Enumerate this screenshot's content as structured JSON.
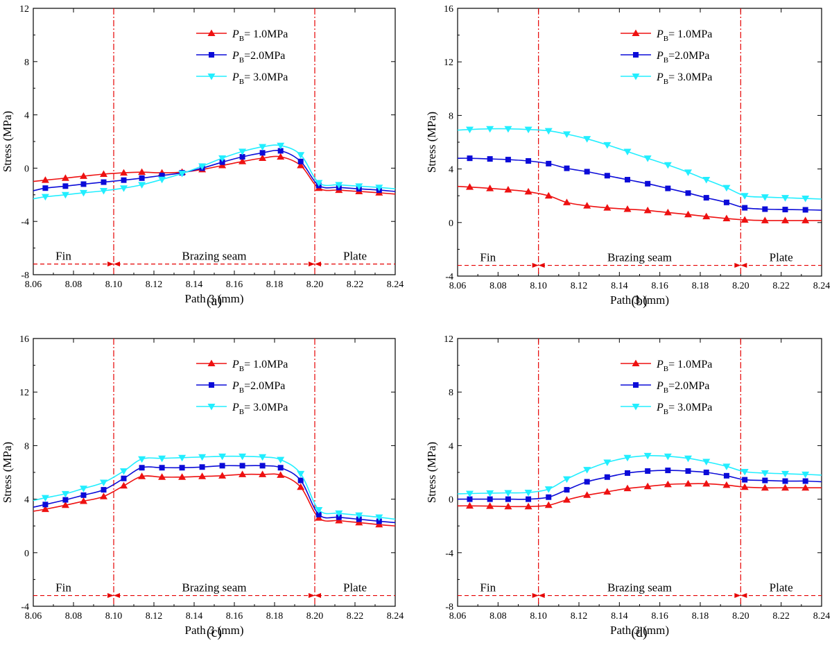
{
  "figure": {
    "panel_labels": [
      "(a)",
      "(b)",
      "(c)",
      "(d)"
    ]
  },
  "colors": {
    "series": [
      "#ee1111",
      "#0b0bd8",
      "#22eeff"
    ],
    "divider": "#e60000",
    "axis": "#000000"
  },
  "chart_data": [
    {
      "type": "line",
      "panel": "(a)",
      "xlabel": "Path 3 (mm)",
      "ylabel": "Stress (MPa)",
      "xlim": [
        8.06,
        8.24
      ],
      "ylim": [
        -8,
        12
      ],
      "xticks": [
        "8.06",
        "8.08",
        "8.10",
        "8.12",
        "8.14",
        "8.16",
        "8.18",
        "8.20",
        "8.22",
        "8.24"
      ],
      "yticks": [
        -8,
        -4,
        0,
        4,
        8,
        12
      ],
      "regions": [
        {
          "label": "Fin",
          "x": 8.075
        },
        {
          "label": "Brazing seam",
          "x": 8.15
        },
        {
          "label": "Plate",
          "x": 8.22
        }
      ],
      "dividers": [
        8.1,
        8.2
      ],
      "arrow_y": -7.2,
      "x": [
        8.06,
        8.066,
        8.076,
        8.085,
        8.095,
        8.105,
        8.114,
        8.124,
        8.134,
        8.144,
        8.154,
        8.164,
        8.174,
        8.183,
        8.193,
        8.202,
        8.212,
        8.222,
        8.232,
        8.24
      ],
      "series": [
        {
          "name": "PB=1.0MPa",
          "prefix": "P",
          "sub": "B",
          "suffix": "= 1.0MPa",
          "marker": "triangle-up",
          "values": [
            -1.0,
            -0.9,
            -0.75,
            -0.6,
            -0.45,
            -0.35,
            -0.3,
            -0.35,
            -0.3,
            -0.1,
            0.2,
            0.5,
            0.75,
            0.85,
            0.2,
            -1.5,
            -1.65,
            -1.75,
            -1.85,
            -1.95
          ]
        },
        {
          "name": "PB=2.0MPa",
          "prefix": "P",
          "sub": "B",
          "suffix": "=2.0MPa",
          "marker": "square",
          "values": [
            -1.7,
            -1.5,
            -1.35,
            -1.2,
            -1.05,
            -0.9,
            -0.75,
            -0.55,
            -0.35,
            0.0,
            0.45,
            0.85,
            1.15,
            1.3,
            0.5,
            -1.3,
            -1.45,
            -1.55,
            -1.65,
            -1.75
          ]
        },
        {
          "name": "PB=3.0MPa",
          "prefix": "P",
          "sub": "B",
          "suffix": "= 3.0MPa",
          "marker": "triangle-down",
          "values": [
            -2.3,
            -2.15,
            -2.0,
            -1.85,
            -1.7,
            -1.5,
            -1.25,
            -0.85,
            -0.4,
            0.15,
            0.75,
            1.25,
            1.6,
            1.7,
            1.0,
            -1.1,
            -1.25,
            -1.35,
            -1.45,
            -1.55
          ]
        }
      ]
    },
    {
      "type": "line",
      "panel": "(b)",
      "xlabel": "Path 3 (mm)",
      "ylabel": "Stress (MPa)",
      "xlim": [
        8.06,
        8.24
      ],
      "ylim": [
        -4,
        16
      ],
      "xticks": [
        "8.06",
        "8.08",
        "8.10",
        "8.12",
        "8.14",
        "8.16",
        "8.18",
        "8.20",
        "8.22",
        "8.24"
      ],
      "yticks": [
        -4,
        0,
        4,
        8,
        12,
        16
      ],
      "regions": [
        {
          "label": "Fin",
          "x": 8.075
        },
        {
          "label": "Brazing seam",
          "x": 8.15
        },
        {
          "label": "Plate",
          "x": 8.22
        }
      ],
      "dividers": [
        8.1,
        8.2
      ],
      "arrow_y": -3.2,
      "x": [
        8.06,
        8.066,
        8.076,
        8.085,
        8.095,
        8.105,
        8.114,
        8.124,
        8.134,
        8.144,
        8.154,
        8.164,
        8.174,
        8.183,
        8.193,
        8.202,
        8.212,
        8.222,
        8.232,
        8.24
      ],
      "series": [
        {
          "name": "PB=1.0MPa",
          "prefix": "P",
          "sub": "B",
          "suffix": "= 1.0MPa",
          "marker": "triangle-up",
          "values": [
            2.7,
            2.65,
            2.55,
            2.45,
            2.3,
            2.0,
            1.5,
            1.25,
            1.1,
            1.0,
            0.9,
            0.75,
            0.6,
            0.45,
            0.3,
            0.2,
            0.15,
            0.15,
            0.15,
            0.15
          ]
        },
        {
          "name": "PB=2.0MPa",
          "prefix": "P",
          "sub": "B",
          "suffix": "=2.0MPa",
          "marker": "square",
          "values": [
            4.8,
            4.8,
            4.75,
            4.7,
            4.6,
            4.4,
            4.05,
            3.8,
            3.5,
            3.2,
            2.9,
            2.55,
            2.2,
            1.85,
            1.5,
            1.1,
            1.0,
            0.97,
            0.95,
            0.92
          ]
        },
        {
          "name": "PB=3.0MPa",
          "prefix": "P",
          "sub": "B",
          "suffix": "= 3.0MPa",
          "marker": "triangle-down",
          "values": [
            6.9,
            6.95,
            7.0,
            7.0,
            6.95,
            6.85,
            6.6,
            6.25,
            5.8,
            5.3,
            4.8,
            4.3,
            3.75,
            3.2,
            2.6,
            2.0,
            1.9,
            1.85,
            1.8,
            1.75
          ]
        }
      ]
    },
    {
      "type": "line",
      "panel": "(c)",
      "xlabel": "Path 3 (mm)",
      "ylabel": "Stress (MPa)",
      "xlim": [
        8.06,
        8.24
      ],
      "ylim": [
        -4,
        16
      ],
      "xticks": [
        "8.06",
        "8.08",
        "8.10",
        "8.12",
        "8.14",
        "8.16",
        "8.18",
        "8.20",
        "8.22",
        "8.24"
      ],
      "yticks": [
        -4,
        0,
        4,
        8,
        12,
        16
      ],
      "regions": [
        {
          "label": "Fin",
          "x": 8.075
        },
        {
          "label": "Brazing seam",
          "x": 8.15
        },
        {
          "label": "Plate",
          "x": 8.22
        }
      ],
      "dividers": [
        8.1,
        8.2
      ],
      "arrow_y": -3.2,
      "x": [
        8.06,
        8.066,
        8.076,
        8.085,
        8.095,
        8.105,
        8.114,
        8.124,
        8.134,
        8.144,
        8.154,
        8.164,
        8.174,
        8.183,
        8.193,
        8.202,
        8.212,
        8.222,
        8.232,
        8.24
      ],
      "series": [
        {
          "name": "PB=1.0MPa",
          "prefix": "P",
          "sub": "B",
          "suffix": "= 1.0MPa",
          "marker": "triangle-up",
          "values": [
            3.1,
            3.25,
            3.55,
            3.85,
            4.2,
            5.0,
            5.7,
            5.65,
            5.65,
            5.7,
            5.75,
            5.85,
            5.85,
            5.8,
            4.9,
            2.6,
            2.4,
            2.25,
            2.1,
            2.0
          ]
        },
        {
          "name": "PB=2.0MPa",
          "prefix": "P",
          "sub": "B",
          "suffix": "=2.0MPa",
          "marker": "square",
          "values": [
            3.4,
            3.6,
            3.95,
            4.3,
            4.7,
            5.55,
            6.35,
            6.35,
            6.35,
            6.4,
            6.5,
            6.5,
            6.5,
            6.35,
            5.4,
            2.85,
            2.65,
            2.5,
            2.35,
            2.25
          ]
        },
        {
          "name": "PB=3.0MPa",
          "prefix": "P",
          "sub": "B",
          "suffix": "= 3.0MPa",
          "marker": "triangle-down",
          "values": [
            3.9,
            4.1,
            4.4,
            4.8,
            5.25,
            6.1,
            7.0,
            7.05,
            7.1,
            7.15,
            7.2,
            7.2,
            7.15,
            6.95,
            5.9,
            3.2,
            2.95,
            2.8,
            2.65,
            2.5
          ]
        }
      ]
    },
    {
      "type": "line",
      "panel": "(d)",
      "xlabel": "Path 3 (mm)",
      "ylabel": "Stress (MPa)",
      "xlim": [
        8.06,
        8.24
      ],
      "ylim": [
        -8,
        12
      ],
      "xticks": [
        "8.06",
        "8.08",
        "8.10",
        "8.12",
        "8.14",
        "8.16",
        "8.18",
        "8.20",
        "8.22",
        "8.24"
      ],
      "yticks": [
        -8,
        -4,
        0,
        4,
        8,
        12
      ],
      "regions": [
        {
          "label": "Fin",
          "x": 8.075
        },
        {
          "label": "Brazing seam",
          "x": 8.15
        },
        {
          "label": "Plate",
          "x": 8.22
        }
      ],
      "dividers": [
        8.1,
        8.2
      ],
      "arrow_y": -7.2,
      "x": [
        8.06,
        8.066,
        8.076,
        8.085,
        8.095,
        8.105,
        8.114,
        8.124,
        8.134,
        8.144,
        8.154,
        8.164,
        8.174,
        8.183,
        8.193,
        8.202,
        8.212,
        8.222,
        8.232,
        8.24
      ],
      "series": [
        {
          "name": "PB=1.0MPa",
          "prefix": "P",
          "sub": "B",
          "suffix": "= 1.0MPa",
          "marker": "triangle-up",
          "values": [
            -0.5,
            -0.5,
            -0.52,
            -0.55,
            -0.55,
            -0.45,
            -0.05,
            0.3,
            0.55,
            0.8,
            0.95,
            1.1,
            1.15,
            1.15,
            1.05,
            0.9,
            0.85,
            0.85,
            0.85,
            0.85
          ]
        },
        {
          "name": "PB=2.0MPa",
          "prefix": "P",
          "sub": "B",
          "suffix": "=2.0MPa",
          "marker": "square",
          "values": [
            0.0,
            0.0,
            0.0,
            0.0,
            0.0,
            0.15,
            0.7,
            1.3,
            1.65,
            1.95,
            2.1,
            2.15,
            2.1,
            2.0,
            1.75,
            1.45,
            1.4,
            1.35,
            1.35,
            1.3
          ]
        },
        {
          "name": "PB=3.0MPa",
          "prefix": "P",
          "sub": "B",
          "suffix": "= 3.0MPa",
          "marker": "triangle-down",
          "values": [
            0.4,
            0.42,
            0.45,
            0.47,
            0.5,
            0.75,
            1.5,
            2.2,
            2.75,
            3.1,
            3.25,
            3.2,
            3.05,
            2.8,
            2.45,
            2.05,
            1.95,
            1.9,
            1.85,
            1.8
          ]
        }
      ]
    }
  ]
}
